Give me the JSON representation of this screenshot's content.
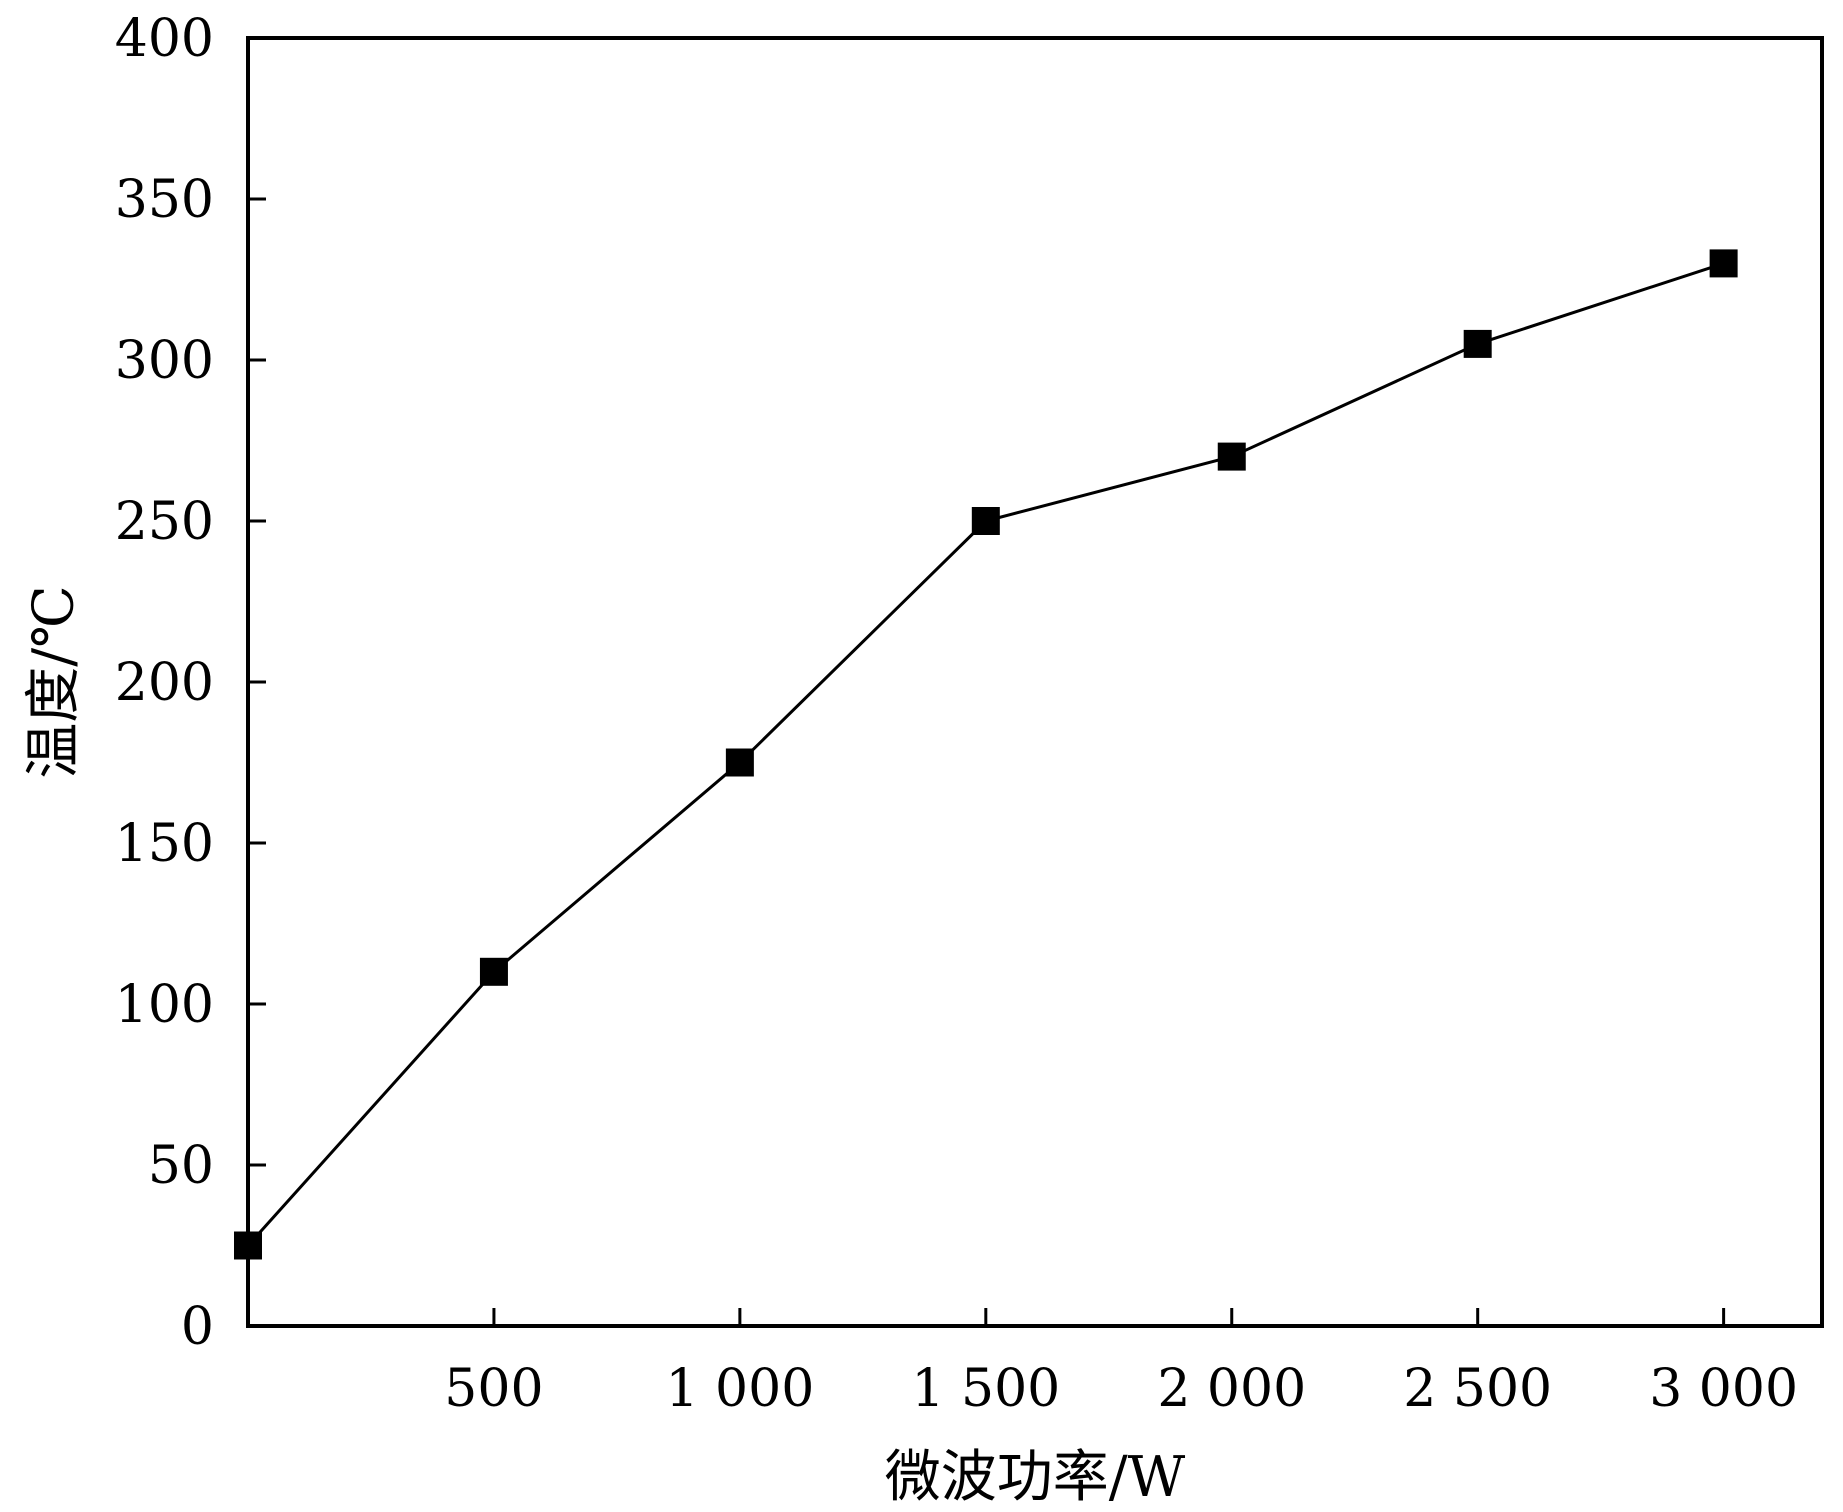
{
  "chart_data": {
    "type": "line",
    "xlabel": "微波功率/W",
    "ylabel": "温度/℃",
    "xlim": [
      0,
      3200
    ],
    "ylim": [
      0,
      400
    ],
    "x_ticks": [
      500,
      1000,
      1500,
      2000,
      2500,
      3000
    ],
    "x_tick_labels": [
      "500",
      "1 000",
      "1 500",
      "2 000",
      "2 500",
      "3 000"
    ],
    "y_ticks": [
      0,
      50,
      100,
      150,
      200,
      250,
      300,
      350,
      400
    ],
    "y_tick_labels": [
      "0",
      "50",
      "100",
      "150",
      "200",
      "250",
      "300",
      "350",
      "400"
    ],
    "grid": false,
    "series": [
      {
        "marker": "square",
        "color": "#000000",
        "x": [
          0,
          500,
          1000,
          1500,
          2000,
          2500,
          3000
        ],
        "y": [
          25,
          110,
          175,
          250,
          270,
          305,
          330
        ]
      }
    ]
  }
}
